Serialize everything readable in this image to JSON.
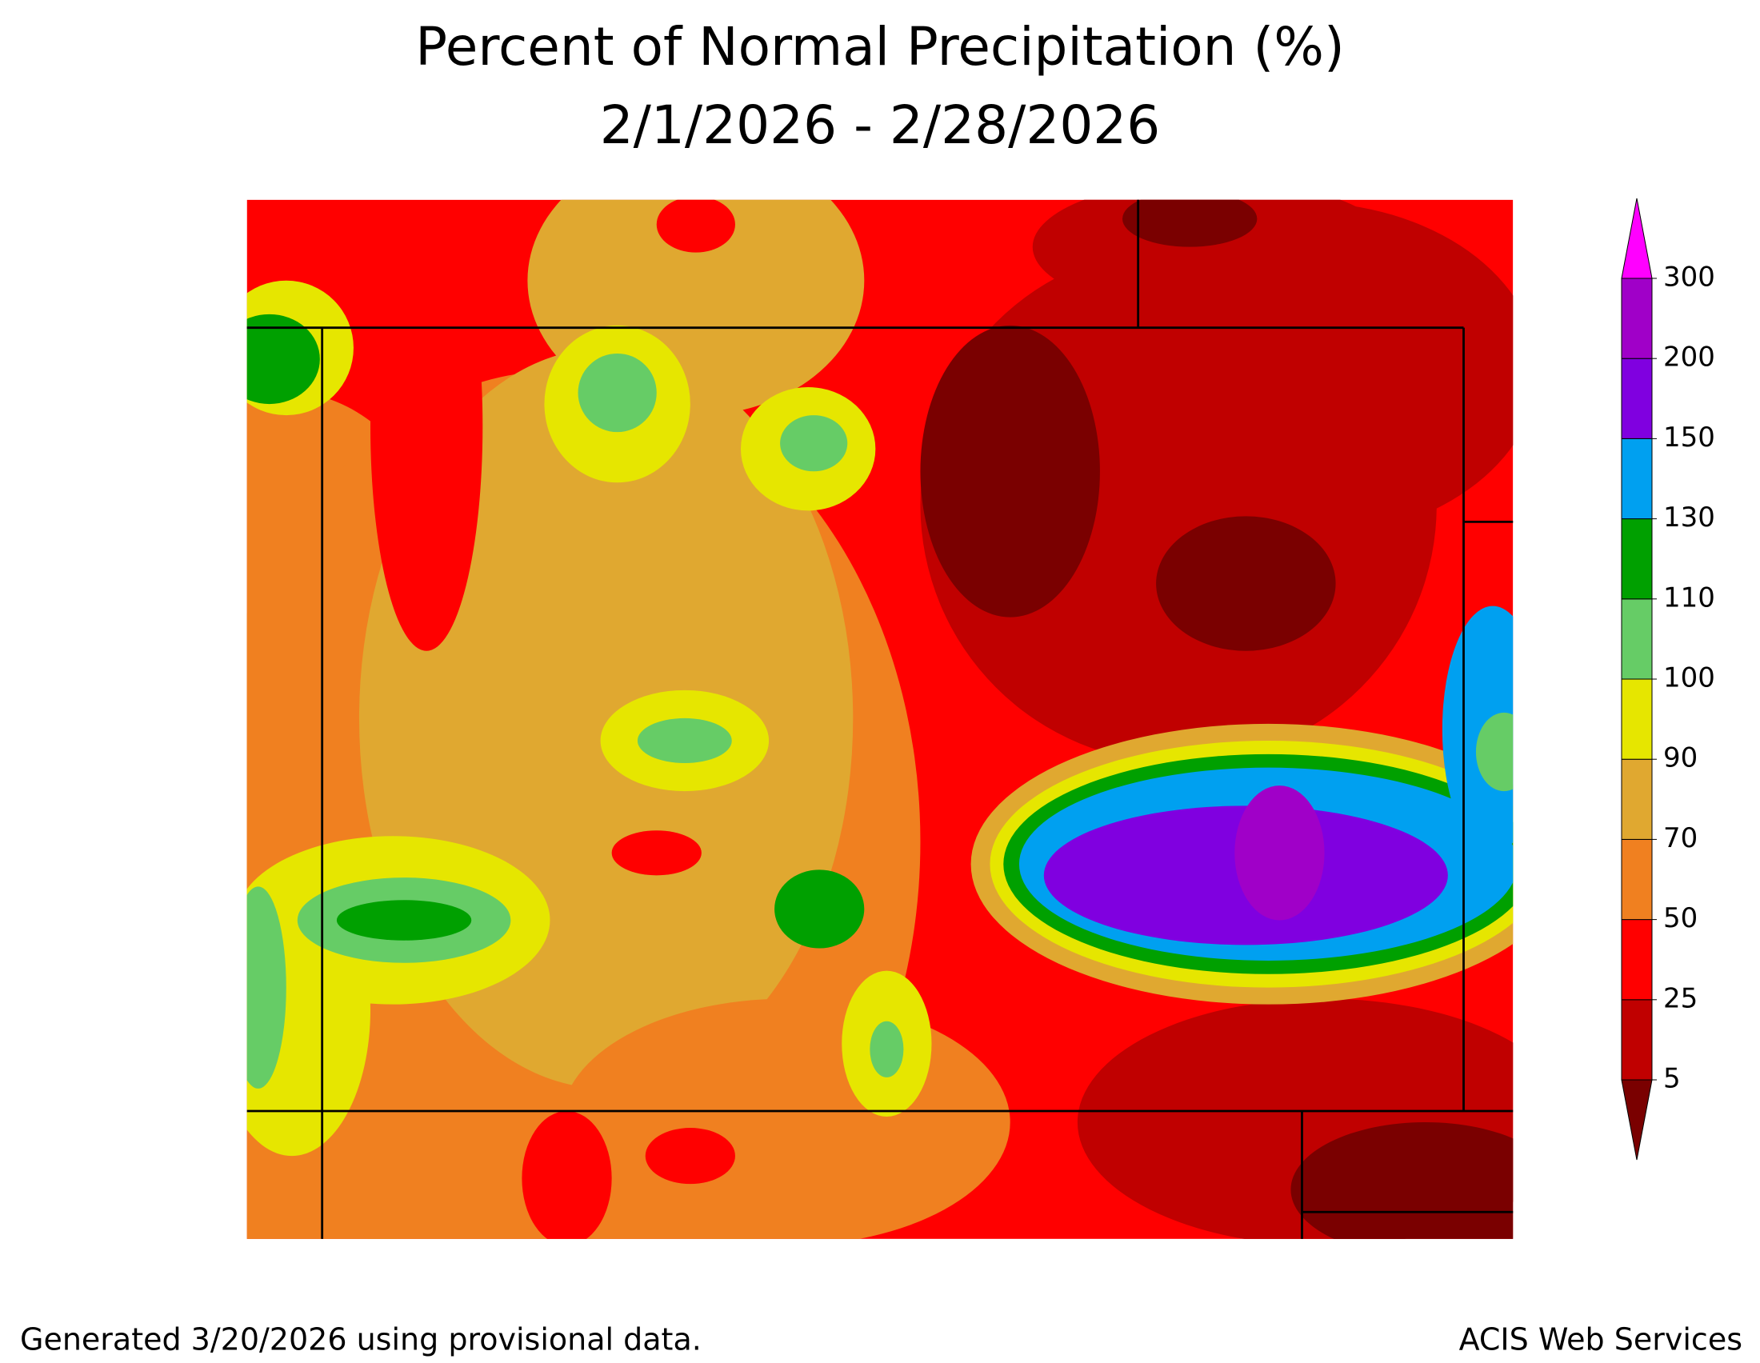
{
  "title": [
    "Percent of Normal Precipitation (%)",
    "2/1/2026 - 2/28/2026"
  ],
  "legend": {
    "ticks": [
      5,
      25,
      50,
      70,
      90,
      100,
      110,
      130,
      150,
      200,
      300
    ],
    "colors": [
      "#7a0000",
      "#c00000",
      "#ff0000",
      "#f08020",
      "#e0a830",
      "#e6e600",
      "#66cc66",
      "#00a000",
      "#00a0f0",
      "#8000e0",
      "#a000c8",
      "#ff00ff"
    ]
  },
  "footer": {
    "left": "Generated 3/20/2026 using provisional data.",
    "right": "ACIS Web Services"
  }
}
